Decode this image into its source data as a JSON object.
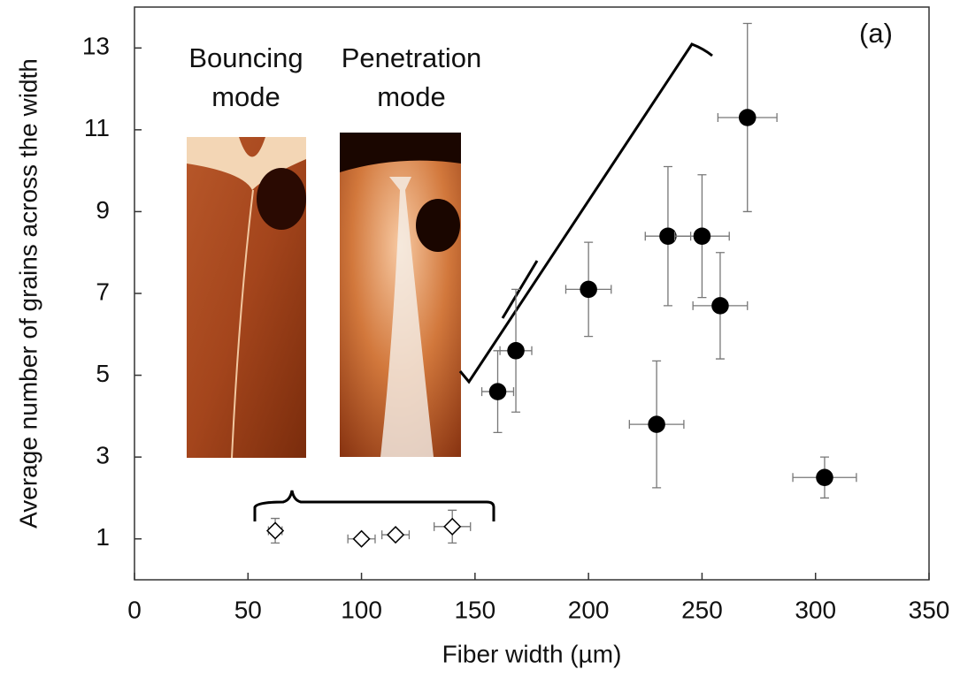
{
  "chart_data": {
    "type": "scatter",
    "xlabel": "Fiber width (µm)",
    "ylabel": "Average number of grains across the width",
    "xlim": [
      0,
      350
    ],
    "xticks": [
      0,
      50,
      100,
      150,
      200,
      250,
      300,
      350
    ],
    "ylim": [
      0,
      14
    ],
    "yticks": [
      1,
      3,
      5,
      7,
      9,
      11,
      13
    ],
    "annotation": "(a)",
    "inset_labels": [
      [
        "Bouncing",
        "mode"
      ],
      [
        "Penetration",
        "mode"
      ]
    ],
    "series": [
      {
        "color": "#000000",
        "marker": "circle",
        "filled": true,
        "x": [
          160,
          168,
          200,
          230,
          235,
          250,
          258,
          270,
          304
        ],
        "values": [
          4.6,
          5.6,
          7.1,
          3.8,
          8.4,
          8.4,
          6.7,
          11.3,
          2.5
        ],
        "xerr": [
          7,
          7,
          10,
          12,
          10,
          12,
          12,
          13,
          14
        ],
        "yerr": [
          1.0,
          1.5,
          1.15,
          1.55,
          1.7,
          1.5,
          1.3,
          2.3,
          0.5
        ]
      },
      {
        "color": "#000000",
        "marker": "diamond",
        "filled": false,
        "x": [
          62,
          100,
          115,
          140
        ],
        "values": [
          1.2,
          1.0,
          1.1,
          1.3
        ],
        "xerr": [
          3,
          6,
          6,
          8
        ],
        "yerr": [
          0.3,
          0.05,
          0.1,
          0.4
        ]
      }
    ]
  }
}
